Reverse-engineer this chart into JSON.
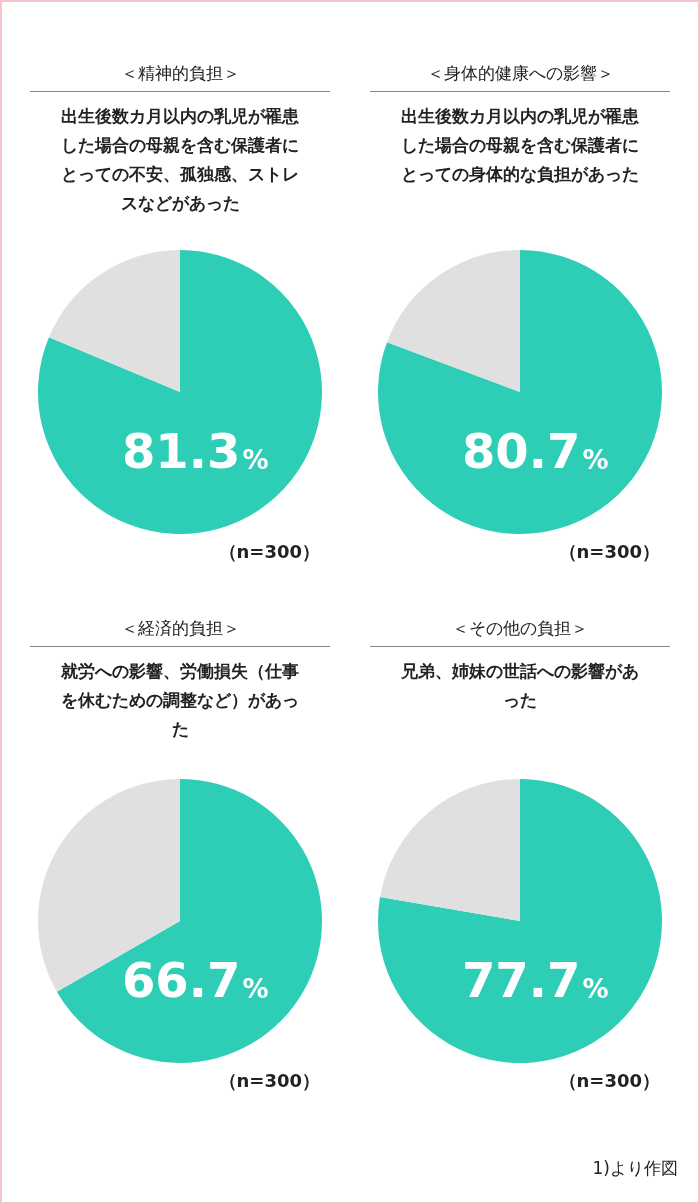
{
  "chart_data": [
    {
      "type": "pie",
      "title": "＜精神的負担＞",
      "subtitle": "出生後数カ月以内の乳児が罹患した場合の母親を含む保護者にとっての不安、孤独感、ストレスなどがあった",
      "categories": [
        null,
        null
      ],
      "values": [
        81.3,
        18.7
      ],
      "colors": [
        "#2dcdb6",
        "#e0e0e0"
      ],
      "value_labels": [
        "81.3%",
        null
      ],
      "legend": false,
      "annotations": [
        "（n=300）"
      ]
    },
    {
      "type": "pie",
      "title": "＜身体的健康への影響＞",
      "subtitle": "出生後数カ月以内の乳児が罹患した場合の母親を含む保護者にとっての身体的な負担があった",
      "categories": [
        null,
        null
      ],
      "values": [
        80.7,
        19.3
      ],
      "colors": [
        "#2dcdb6",
        "#e0e0e0"
      ],
      "value_labels": [
        "80.7%",
        null
      ],
      "legend": false,
      "annotations": [
        "（n=300）"
      ]
    },
    {
      "type": "pie",
      "title": "＜経済的負担＞",
      "subtitle": "就労への影響、労働損失（仕事を休むための調整など）があった",
      "categories": [
        null,
        null
      ],
      "values": [
        66.7,
        33.3
      ],
      "colors": [
        "#2dcdb6",
        "#e0e0e0"
      ],
      "value_labels": [
        "66.7%",
        null
      ],
      "legend": false,
      "annotations": [
        "（n=300）"
      ]
    },
    {
      "type": "pie",
      "title": "＜その他の負担＞",
      "subtitle": "兄弟、姉妹の世話への影響があった",
      "categories": [
        null,
        null
      ],
      "values": [
        77.7,
        22.3
      ],
      "colors": [
        "#2dcdb6",
        "#e0e0e0"
      ],
      "value_labels": [
        "77.7%",
        null
      ],
      "legend": false,
      "annotations": [
        "（n=300）",
        "1)より作図"
      ]
    }
  ]
}
